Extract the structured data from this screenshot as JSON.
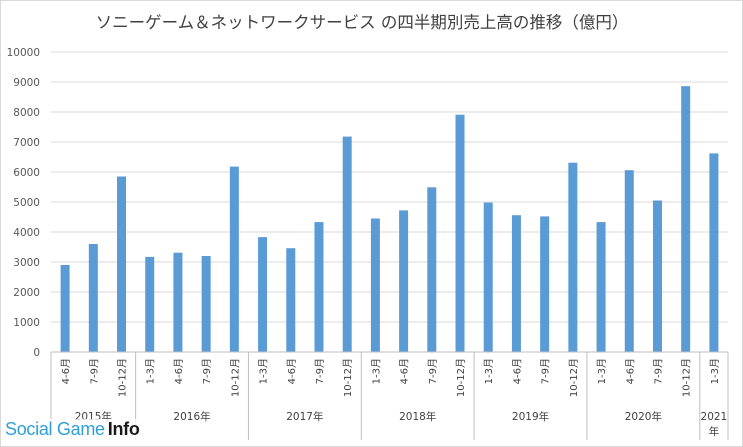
{
  "chart_data": {
    "type": "bar",
    "title": "ソニーゲーム＆ネットワークサービス の四半期別売上高の推移（億円）",
    "xlabel": "",
    "ylabel": "",
    "ylim": [
      0,
      10000
    ],
    "yticks": [
      0,
      1000,
      2000,
      3000,
      4000,
      5000,
      6000,
      7000,
      8000,
      9000,
      10000
    ],
    "grid": true,
    "legend": "none",
    "bar_color": "#5b9bd5",
    "categories": [
      "4-6月",
      "7-9月",
      "10-12月",
      "1-3月",
      "4-6月",
      "7-9月",
      "10-12月",
      "1-3月",
      "4-6月",
      "7-9月",
      "10-12月",
      "1-3月",
      "4-6月",
      "7-9月",
      "10-12月",
      "1-3月",
      "4-6月",
      "7-9月",
      "10-12月",
      "1-3月",
      "4-6月",
      "7-9月",
      "10-12月",
      "1-3月"
    ],
    "groups": [
      {
        "label": "2015年",
        "count": 3
      },
      {
        "label": "2016年",
        "count": 4
      },
      {
        "label": "2017年",
        "count": 4
      },
      {
        "label": "2018年",
        "count": 4
      },
      {
        "label": "2019年",
        "count": 4
      },
      {
        "label": "2020年",
        "count": 4
      },
      {
        "label": "2021年",
        "count": 1
      }
    ],
    "values": [
      2900,
      3600,
      5850,
      3170,
      3310,
      3200,
      6180,
      3830,
      3460,
      4330,
      7180,
      4450,
      4720,
      5490,
      7910,
      4980,
      4560,
      4520,
      6310,
      4330,
      6060,
      5050,
      8860,
      6620
    ]
  },
  "watermark": {
    "part1": "Social Game",
    "part2": "Info"
  }
}
